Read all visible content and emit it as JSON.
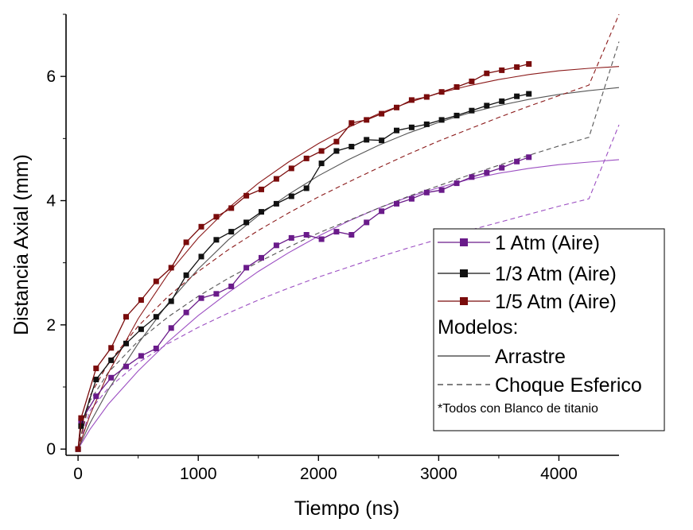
{
  "chart_data": {
    "type": "line",
    "xlabel": "Tiempo (ns)",
    "ylabel": "Distancia Axial (mm)",
    "xlim": [
      -100,
      4500
    ],
    "ylim": [
      -0.1,
      7.0
    ],
    "xticks": [
      0,
      1000,
      2000,
      3000,
      4000
    ],
    "xtick_labels": [
      "0",
      "1000",
      "2000",
      "3000",
      "4000"
    ],
    "yticks": [
      0,
      2,
      4,
      6
    ],
    "ytick_labels": [
      "0",
      "2",
      "4",
      "6"
    ],
    "grid": false,
    "legend_position": "right",
    "series": [
      {
        "name": "1 Atm (Aire)",
        "color": "#6a1b8a",
        "marker": "square",
        "x": [
          0,
          25,
          150,
          275,
          400,
          525,
          650,
          775,
          900,
          1025,
          1150,
          1275,
          1400,
          1525,
          1650,
          1775,
          1900,
          2025,
          2150,
          2275,
          2400,
          2525,
          2650,
          2775,
          2900,
          3025,
          3150,
          3275,
          3400,
          3525,
          3650,
          3750
        ],
        "y": [
          0,
          0.45,
          0.85,
          1.15,
          1.33,
          1.5,
          1.62,
          1.95,
          2.2,
          2.43,
          2.5,
          2.62,
          2.92,
          3.08,
          3.28,
          3.4,
          3.45,
          3.38,
          3.5,
          3.45,
          3.65,
          3.83,
          3.95,
          4.03,
          4.13,
          4.17,
          4.28,
          4.38,
          4.45,
          4.53,
          4.63,
          4.7
        ]
      },
      {
        "name": "1/3 Atm (Aire)",
        "color": "#111111",
        "marker": "square",
        "x": [
          0,
          25,
          150,
          275,
          400,
          525,
          650,
          775,
          900,
          1025,
          1150,
          1275,
          1400,
          1525,
          1650,
          1775,
          1900,
          2025,
          2150,
          2275,
          2400,
          2525,
          2650,
          2775,
          2900,
          3025,
          3150,
          3275,
          3400,
          3525,
          3650,
          3750
        ],
        "y": [
          0,
          0.37,
          1.12,
          1.43,
          1.7,
          1.93,
          2.13,
          2.38,
          2.8,
          3.1,
          3.37,
          3.5,
          3.65,
          3.82,
          3.95,
          4.07,
          4.2,
          4.6,
          4.8,
          4.87,
          4.98,
          4.97,
          5.13,
          5.18,
          5.23,
          5.3,
          5.37,
          5.45,
          5.53,
          5.6,
          5.68,
          5.72
        ]
      },
      {
        "name": "1/5 Atm (Aire)",
        "color": "#7a0c0c",
        "marker": "square",
        "x": [
          0,
          25,
          150,
          275,
          400,
          525,
          650,
          775,
          900,
          1025,
          1150,
          1275,
          1400,
          1525,
          1650,
          1775,
          1900,
          2025,
          2150,
          2275,
          2400,
          2525,
          2650,
          2775,
          2900,
          3025,
          3150,
          3275,
          3400,
          3525,
          3650,
          3750
        ],
        "y": [
          0,
          0.5,
          1.3,
          1.63,
          2.13,
          2.4,
          2.7,
          2.92,
          3.33,
          3.58,
          3.74,
          3.88,
          4.08,
          4.18,
          4.35,
          4.52,
          4.68,
          4.8,
          4.95,
          5.25,
          5.3,
          5.4,
          5.5,
          5.62,
          5.67,
          5.75,
          5.83,
          5.92,
          6.05,
          6.1,
          6.15,
          6.2
        ]
      }
    ],
    "models": [
      {
        "model": "Arrastre",
        "color": "#9c4fc2",
        "dash": "solid",
        "x": [
          0,
          100,
          250,
          500,
          750,
          1000,
          1250,
          1500,
          1750,
          2000,
          2250,
          2500,
          2750,
          3000,
          3250,
          3500,
          3750,
          4000,
          4250,
          4500
        ],
        "y": [
          0,
          0.32,
          0.72,
          1.26,
          1.73,
          2.15,
          2.52,
          2.86,
          3.16,
          3.43,
          3.67,
          3.88,
          4.06,
          4.21,
          4.34,
          4.44,
          4.52,
          4.58,
          4.62,
          4.66
        ]
      },
      {
        "model": "Choque Esferico",
        "color": "#9c4fc2",
        "dash": "dashed",
        "x": [
          0,
          100,
          250,
          500,
          750,
          1000,
          1250,
          1500,
          1750,
          2000,
          2250,
          2500,
          2750,
          3000,
          3250,
          3500,
          3750,
          4000,
          4250,
          4500
        ],
        "y": [
          0,
          0.62,
          0.98,
          1.39,
          1.7,
          1.96,
          2.19,
          2.4,
          2.59,
          2.77,
          2.93,
          3.09,
          3.24,
          3.38,
          3.52,
          3.65,
          3.78,
          3.91,
          4.03,
          5.22
        ]
      },
      {
        "model": "Arrastre",
        "color": "#555555",
        "dash": "solid",
        "x": [
          0,
          100,
          250,
          500,
          750,
          1000,
          1250,
          1500,
          1750,
          2000,
          2250,
          2500,
          2750,
          3000,
          3250,
          3500,
          3750,
          4000,
          4250,
          4500
        ],
        "y": [
          0,
          0.42,
          0.95,
          1.7,
          2.35,
          2.9,
          3.37,
          3.76,
          4.1,
          4.4,
          4.66,
          4.89,
          5.09,
          5.26,
          5.41,
          5.53,
          5.63,
          5.71,
          5.77,
          5.82
        ]
      },
      {
        "model": "Choque Esferico",
        "color": "#555555",
        "dash": "dashed",
        "x": [
          0,
          100,
          250,
          500,
          750,
          1000,
          1250,
          1500,
          1750,
          2000,
          2250,
          2500,
          2750,
          3000,
          3250,
          3500,
          3750,
          4000,
          4250,
          4500
        ],
        "y": [
          0,
          0.78,
          1.23,
          1.74,
          2.13,
          2.46,
          2.75,
          3.01,
          3.25,
          3.48,
          3.68,
          3.88,
          4.07,
          4.24,
          4.41,
          4.57,
          4.73,
          4.88,
          5.02,
          6.56
        ]
      },
      {
        "model": "Arrastre",
        "color": "#8b1a1a",
        "dash": "solid",
        "x": [
          0,
          100,
          250,
          500,
          750,
          1000,
          1250,
          1500,
          1750,
          2000,
          2250,
          2500,
          2750,
          3000,
          3250,
          3500,
          3750,
          4000,
          4250,
          4500
        ],
        "y": [
          0,
          0.55,
          1.22,
          2.1,
          2.82,
          3.4,
          3.88,
          4.28,
          4.62,
          4.92,
          5.18,
          5.4,
          5.58,
          5.73,
          5.85,
          5.95,
          6.03,
          6.09,
          6.13,
          6.16
        ]
      },
      {
        "model": "Choque Esferico",
        "color": "#8b1a1a",
        "dash": "dashed",
        "x": [
          0,
          100,
          250,
          500,
          750,
          1000,
          1250,
          1500,
          1750,
          2000,
          2250,
          2500,
          2750,
          3000,
          3250,
          3500,
          3750,
          4000,
          4250,
          4500
        ],
        "y": [
          0,
          0.86,
          1.38,
          1.98,
          2.46,
          2.86,
          3.21,
          3.52,
          3.8,
          4.06,
          4.3,
          4.53,
          4.75,
          4.96,
          5.15,
          5.34,
          5.52,
          5.69,
          5.86,
          7.0
        ]
      }
    ],
    "legend": {
      "entries": [
        {
          "label": "1 Atm (Aire)",
          "color": "#6a1b8a",
          "style": "line-marker"
        },
        {
          "label": "1/3 Atm (Aire)",
          "color": "#111111",
          "style": "line-marker"
        },
        {
          "label": "1/5 Atm (Aire)",
          "color": "#7a0c0c",
          "style": "line-marker"
        }
      ],
      "models_heading": "Modelos:",
      "model_entries": [
        {
          "label": "Arrastre",
          "color": "#000000",
          "style": "solid"
        },
        {
          "label": "Choque Esferico",
          "color": "#000000",
          "style": "dashed"
        }
      ],
      "note": "*Todos con Blanco de titanio"
    }
  }
}
